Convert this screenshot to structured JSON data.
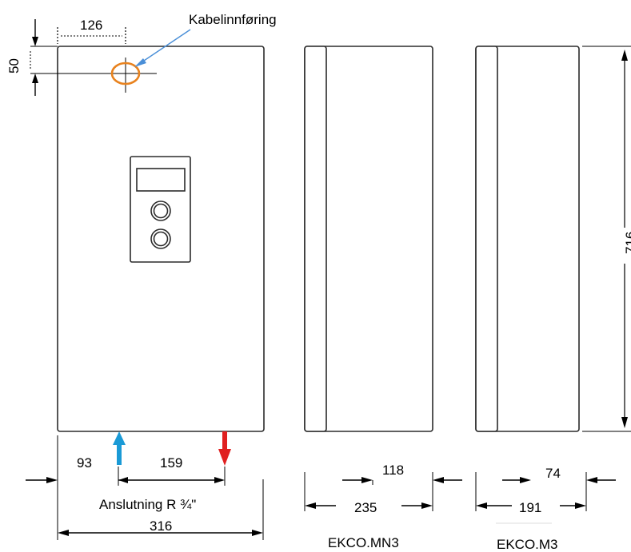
{
  "labels": {
    "cable_entry": "Kabelinnføring",
    "connection": "Anslutning R ¾\"",
    "model_mn3": "EKCO.MN3",
    "model_m3": "EKCO.M3"
  },
  "dimensions": {
    "top_offset": "126",
    "top_height": "50",
    "left_inlet": "93",
    "between_pipes": "159",
    "width_front": "316",
    "depth_mn3_inner": "118",
    "depth_mn3": "235",
    "depth_m3_inner": "74",
    "depth_m3": "191",
    "height": "716"
  },
  "colors": {
    "cold_arrow": "#1a9ad6",
    "hot_arrow": "#e02020",
    "cable_ring": "#e8821e",
    "pointer": "#4a8fd8"
  }
}
